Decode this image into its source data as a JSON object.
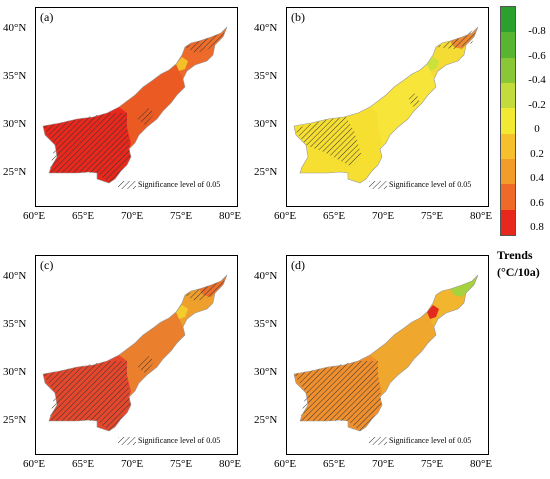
{
  "panels": [
    {
      "letter": "(a)",
      "sig_note": "Significance level of 0.05",
      "fills": {
        "south": "#e8281d",
        "center": "#ec5a23",
        "north": "#ee6a2b",
        "tip": "#ef6f2c",
        "patch": "#f3c02a"
      }
    },
    {
      "letter": "(b)",
      "sig_note": "Significance level of 0.05",
      "fills": {
        "south": "#f6df31",
        "center": "#f8e53a",
        "north": "#f4dc35",
        "tip": "#ec8a31",
        "patch": "#c9e23c"
      }
    },
    {
      "letter": "(c)",
      "sig_note": "Significance level of 0.05",
      "fills": {
        "south": "#e4472c",
        "center": "#ea7f2e",
        "north": "#efa02c",
        "tip": "#eb6f2b",
        "patch": "#f3cd2e"
      }
    },
    {
      "letter": "(d)",
      "sig_note": "Significance level of 0.05",
      "fills": {
        "south": "#ef8f2d",
        "center": "#f0a72e",
        "north": "#f2b52e",
        "tip": "#a6d23d",
        "patch": "#e22a1e"
      }
    }
  ],
  "axes": {
    "x_ticks": [
      "60°E",
      "65°E",
      "70°E",
      "75°E",
      "80°E"
    ],
    "y_ticks": [
      "40°N",
      "35°N",
      "30°N",
      "25°N"
    ]
  },
  "colorbar": {
    "labels": [
      "-0.8",
      "-0.6",
      "-0.4",
      "-0.2",
      "0",
      "0.2",
      "0.4",
      "0.6",
      "0.8"
    ],
    "colors": [
      "#2ca02c",
      "#58b531",
      "#8ac737",
      "#c4dc3b",
      "#f2e933",
      "#f6c02c",
      "#f29d2a",
      "#ee6a26",
      "#e8281d"
    ]
  },
  "legend_title": "Trends",
  "legend_unit": "(°C/10a)"
}
